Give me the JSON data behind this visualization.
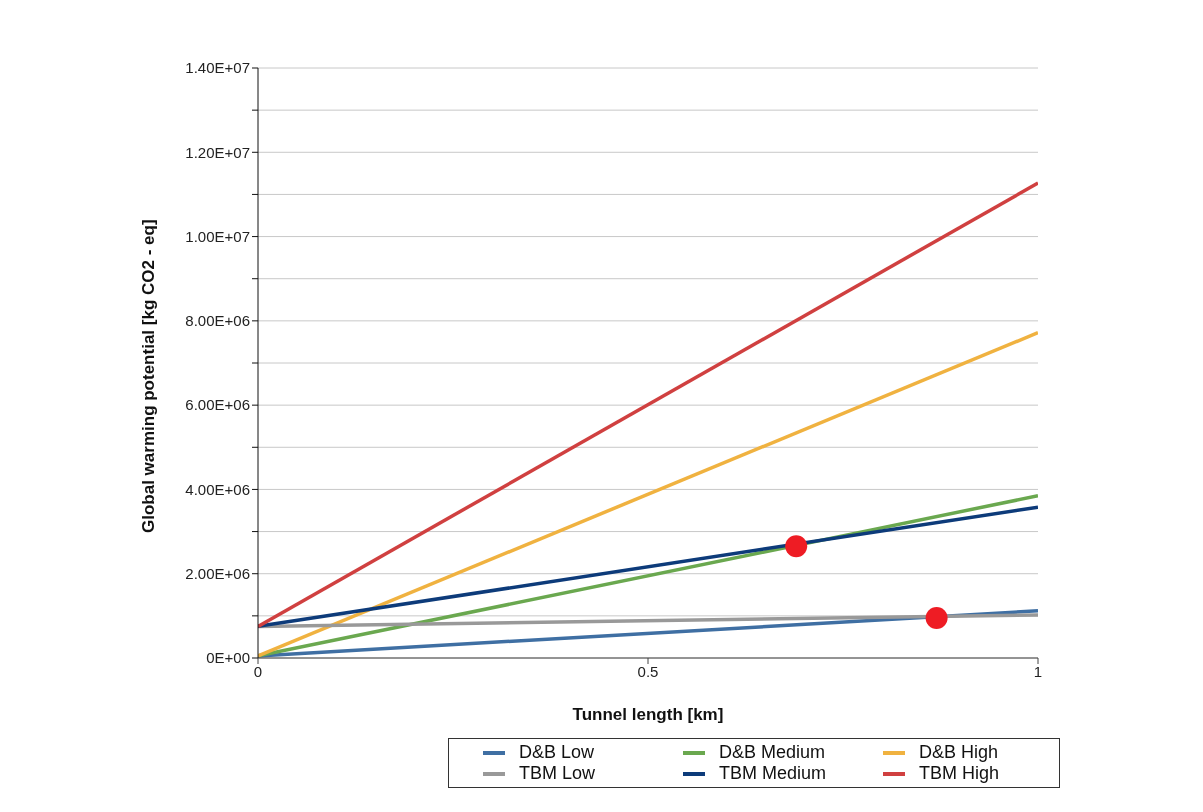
{
  "chart_data": {
    "type": "line",
    "xlabel": "Tunnel length [km]",
    "ylabel": "Global warming potential [kg CO2 - eq]",
    "x": [
      0,
      1
    ],
    "xlim": [
      0,
      1
    ],
    "xticks": [
      0,
      0.5,
      1
    ],
    "ylim": [
      0,
      14000000
    ],
    "yticks": [
      {
        "value": 0,
        "label": "0E+00"
      },
      {
        "value": 1000000,
        "label": null
      },
      {
        "value": 2000000,
        "label": "2.00E+06"
      },
      {
        "value": 3000000,
        "label": null
      },
      {
        "value": 4000000,
        "label": "4.00E+06"
      },
      {
        "value": 5000000,
        "label": null
      },
      {
        "value": 6000000,
        "label": "6.00E+06"
      },
      {
        "value": 7000000,
        "label": null
      },
      {
        "value": 8000000,
        "label": "8.00E+06"
      },
      {
        "value": 9000000,
        "label": null
      },
      {
        "value": 10000000,
        "label": "1.00E+07"
      },
      {
        "value": 11000000,
        "label": null
      },
      {
        "value": 12000000,
        "label": "1.20E+07"
      },
      {
        "value": 13000000,
        "label": null
      },
      {
        "value": 14000000,
        "label": "1.40E+07"
      }
    ],
    "grid": "y",
    "legend": "bottom",
    "marker": "none",
    "line_style": "solid",
    "series": [
      {
        "name": "D&B Low",
        "color": "#3f6fa3",
        "values": [
          50000,
          1120000
        ]
      },
      {
        "name": "D&B Medium",
        "color": "#6aa84f",
        "values": [
          50000,
          3850000
        ]
      },
      {
        "name": "D&B High",
        "color": "#f0b240",
        "values": [
          50000,
          7720000
        ]
      },
      {
        "name": "TBM Low",
        "color": "#999999",
        "values": [
          750000,
          1020000
        ]
      },
      {
        "name": "TBM Medium",
        "color": "#0d3b7a",
        "values": [
          750000,
          3580000
        ]
      },
      {
        "name": "TBM High",
        "color": "#d04040",
        "values": [
          750000,
          11270000
        ]
      },
      {
        "type": "scatter",
        "color": "#ee1c24",
        "marker": "circle",
        "x": [
          0.69,
          0.87
        ],
        "values": [
          2650000,
          950000
        ]
      }
    ]
  }
}
